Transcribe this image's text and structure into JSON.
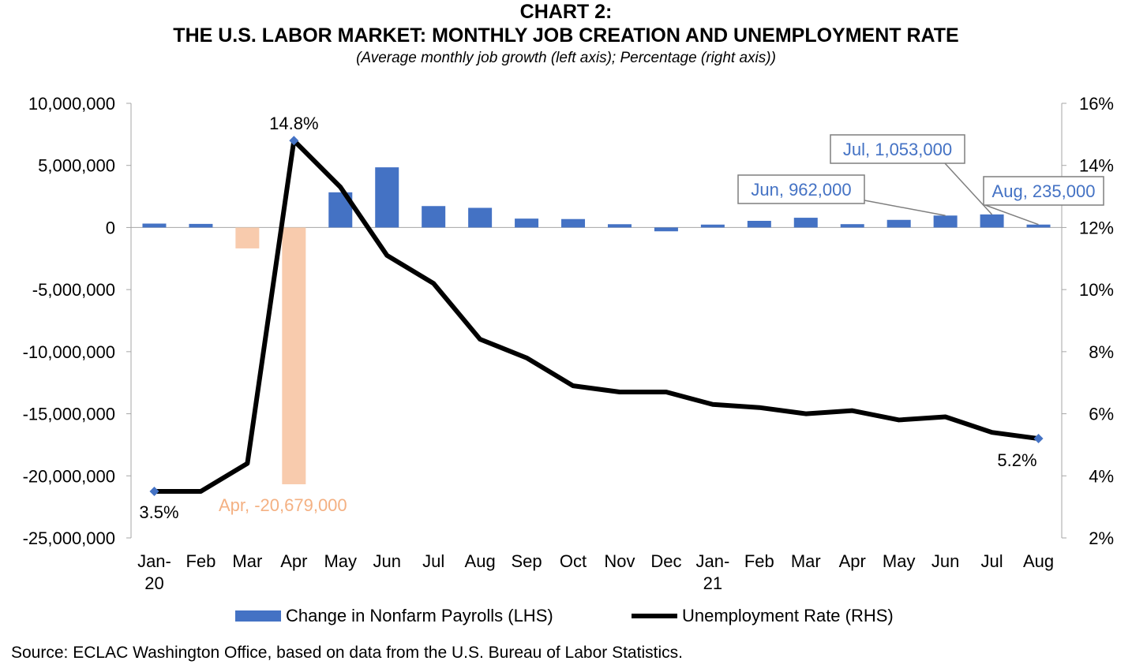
{
  "header": {
    "title_line1": "CHART 2:",
    "title_line2": "THE U.S. LABOR MARKET: MONTHLY JOB CREATION AND UNEMPLOYMENT RATE",
    "subtitle": "(Average monthly job growth (left axis); Percentage (right axis))"
  },
  "legend": {
    "bar_label": "Change in Nonfarm Payrolls (LHS)",
    "line_label": "Unemployment Rate (RHS)"
  },
  "source": "Source: ECLAC Washington Office, based on data from the U.S. Bureau of Labor Statistics.",
  "colors": {
    "bar_positive": "#4472C4",
    "bar_negative": "#F8CBAD",
    "line": "#000000",
    "marker": "#4472C4",
    "label_blue": "#4472C4",
    "label_orange": "#F4B183",
    "axis": "#A6A6A6"
  },
  "chart_data": {
    "type": "bar+line",
    "categories": [
      [
        "Jan-",
        "20"
      ],
      [
        "Feb"
      ],
      [
        "Mar"
      ],
      [
        "Apr"
      ],
      [
        "May"
      ],
      [
        "Jun"
      ],
      [
        "Jul"
      ],
      [
        "Aug"
      ],
      [
        "Sep"
      ],
      [
        "Oct"
      ],
      [
        "Nov"
      ],
      [
        "Dec"
      ],
      [
        "Jan-",
        "21"
      ],
      [
        "Feb"
      ],
      [
        "Mar"
      ],
      [
        "Apr"
      ],
      [
        "May"
      ],
      [
        "Jun"
      ],
      [
        "Jul"
      ],
      [
        "Aug"
      ]
    ],
    "series": [
      {
        "name": "Change in Nonfarm Payrolls (LHS)",
        "type": "bar",
        "axis": "left",
        "values": [
          315000,
          289000,
          -1683000,
          -20679000,
          2833000,
          4846000,
          1726000,
          1583000,
          716000,
          680000,
          264000,
          -306000,
          233000,
          536000,
          785000,
          269000,
          614000,
          962000,
          1053000,
          235000
        ]
      },
      {
        "name": "Unemployment Rate (RHS)",
        "type": "line",
        "axis": "right",
        "values": [
          3.5,
          3.5,
          4.4,
          14.8,
          13.3,
          11.1,
          10.2,
          8.4,
          7.8,
          6.9,
          6.7,
          6.7,
          6.3,
          6.2,
          6.0,
          6.1,
          5.8,
          5.9,
          5.4,
          5.2
        ]
      }
    ],
    "left_axis": {
      "min": -25000000,
      "max": 10000000,
      "step": 5000000,
      "tick_labels": [
        "10,000,000",
        "5,000,000",
        "0",
        "-5,000,000",
        "-10,000,000",
        "-15,000,000",
        "-20,000,000",
        "-25,000,000"
      ]
    },
    "right_axis": {
      "min": 2,
      "max": 16,
      "step": 2,
      "tick_labels": [
        "16%",
        "14%",
        "12%",
        "10%",
        "8%",
        "6%",
        "4%",
        "2%"
      ]
    },
    "line_labels": [
      {
        "index": 0,
        "text": "3.5%",
        "position": "below"
      },
      {
        "index": 3,
        "text": "14.8%",
        "position": "above"
      },
      {
        "index": 19,
        "text": "5.2%",
        "position": "below-left"
      }
    ],
    "bar_callouts": [
      {
        "index": 3,
        "text": "Apr, -20,679,000",
        "boxed": false,
        "color": "orange"
      },
      {
        "index": 17,
        "text": "Jun, 962,000",
        "boxed": true
      },
      {
        "index": 18,
        "text": "Jul, 1,053,000",
        "boxed": true
      },
      {
        "index": 19,
        "text": "Aug, 235,000",
        "boxed": true
      }
    ],
    "grid": false,
    "legend_position": "bottom"
  }
}
